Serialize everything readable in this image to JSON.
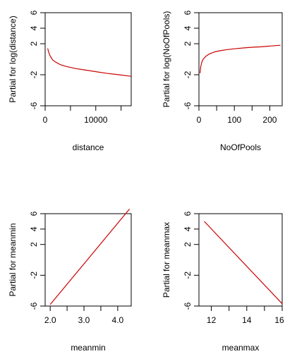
{
  "chart_data": [
    {
      "type": "line",
      "xlabel": "distance",
      "ylabel": "Partial for log(distance)",
      "xlim": [
        0,
        17000
      ],
      "ylim": [
        -6,
        6
      ],
      "xticks": [
        0,
        10000
      ],
      "yticks": [
        -6,
        -2,
        2,
        4,
        6
      ],
      "line_color": "#cc0000",
      "series": [
        {
          "x": [
            500,
            700,
            1000,
            1500,
            2000,
            3000,
            4000,
            6000,
            8000,
            10000,
            12000,
            14000,
            17000
          ],
          "y": [
            1.4,
            0.9,
            0.4,
            -0.1,
            -0.35,
            -0.7,
            -0.9,
            -1.2,
            -1.4,
            -1.6,
            -1.8,
            -1.95,
            -2.2
          ]
        }
      ]
    },
    {
      "type": "line",
      "xlabel": "NoOfPools",
      "ylabel": "Partial for log(NoOfPools)",
      "xlim": [
        0,
        235
      ],
      "ylim": [
        -6,
        6
      ],
      "xticks": [
        0,
        100,
        200
      ],
      "yticks": [
        -6,
        -2,
        2,
        4,
        6
      ],
      "line_color": "#cc0000",
      "series": [
        {
          "x": [
            3,
            5,
            8,
            12,
            20,
            30,
            45,
            60,
            80,
            100,
            125,
            150,
            175,
            200,
            230
          ],
          "y": [
            -1.8,
            -1.0,
            -0.4,
            0.0,
            0.4,
            0.7,
            0.95,
            1.1,
            1.25,
            1.35,
            1.45,
            1.55,
            1.6,
            1.7,
            1.8
          ]
        }
      ]
    },
    {
      "type": "line",
      "xlabel": "meanmin",
      "ylabel": "Partial for meanmin",
      "xlim": [
        1.85,
        4.4
      ],
      "ylim": [
        -6,
        6
      ],
      "xticks": [
        2.0,
        3.0,
        4.0
      ],
      "xtick_labels": [
        "2.0",
        "3.0",
        "4.0"
      ],
      "yticks": [
        -6,
        -2,
        2,
        4,
        6
      ],
      "line_color": "#cc0000",
      "series": [
        {
          "x": [
            2.0,
            4.35
          ],
          "y": [
            -5.8,
            6.6
          ]
        }
      ]
    },
    {
      "type": "line",
      "xlabel": "meanmax",
      "ylabel": "Partial for meanmax",
      "xlim": [
        11.3,
        16.0
      ],
      "ylim": [
        -6,
        6
      ],
      "xticks": [
        12,
        14,
        16
      ],
      "yticks": [
        -6,
        -2,
        2,
        4,
        6
      ],
      "line_color": "#cc0000",
      "series": [
        {
          "x": [
            11.6,
            16.0
          ],
          "y": [
            5.0,
            -5.7
          ]
        }
      ]
    }
  ]
}
